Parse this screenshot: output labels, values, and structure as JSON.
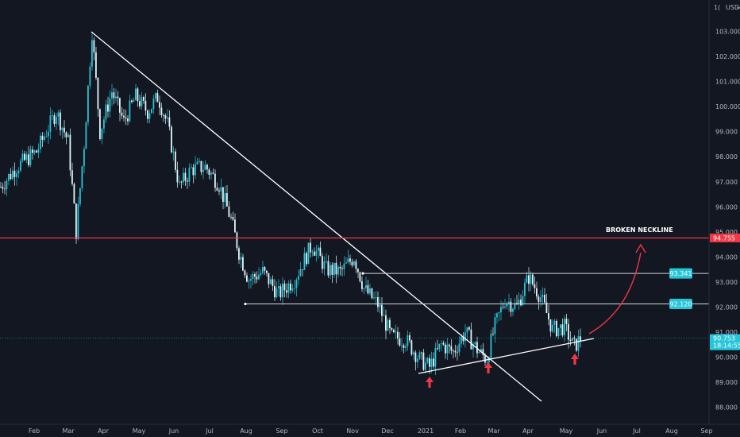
{
  "chart_data": {
    "type": "candlestick",
    "title": "",
    "currency_label": "USD",
    "y_axis_top_label": "1(",
    "ylim": [
      87.6,
      104.1
    ],
    "y_ticks": [
      "88.000",
      "89.000",
      "90.000",
      "91.000",
      "92.000",
      "93.000",
      "94.000",
      "95.000",
      "96.000",
      "97.000",
      "98.000",
      "99.000",
      "100.000",
      "101.000",
      "102.000",
      "103.000"
    ],
    "x_ticks": [
      "Feb",
      "Mar",
      "Apr",
      "May",
      "Jun",
      "Jul",
      "Aug",
      "Sep",
      "Oct",
      "Nov",
      "Dec",
      "2021",
      "Feb",
      "Mar",
      "Apr",
      "May",
      "Jun",
      "Jul",
      "Aug",
      "Sep"
    ],
    "price_path": [
      {
        "t": 0,
        "v": 96.8
      },
      {
        "t": 20,
        "v": 97.6
      },
      {
        "t": 45,
        "v": 98.2
      },
      {
        "t": 70,
        "v": 99.8
      },
      {
        "t": 85,
        "v": 98.6
      },
      {
        "t": 95,
        "v": 95.0
      },
      {
        "t": 105,
        "v": 98.5
      },
      {
        "t": 115,
        "v": 103.0
      },
      {
        "t": 125,
        "v": 99.0
      },
      {
        "t": 140,
        "v": 100.6
      },
      {
        "t": 155,
        "v": 99.4
      },
      {
        "t": 170,
        "v": 100.4
      },
      {
        "t": 185,
        "v": 99.8
      },
      {
        "t": 198,
        "v": 100.4
      },
      {
        "t": 210,
        "v": 99.3
      },
      {
        "t": 225,
        "v": 96.8
      },
      {
        "t": 240,
        "v": 97.5
      },
      {
        "t": 258,
        "v": 97.6
      },
      {
        "t": 275,
        "v": 96.9
      },
      {
        "t": 290,
        "v": 95.5
      },
      {
        "t": 300,
        "v": 94.2
      },
      {
        "t": 312,
        "v": 93.1
      },
      {
        "t": 330,
        "v": 93.4
      },
      {
        "t": 350,
        "v": 92.5
      },
      {
        "t": 370,
        "v": 93.1
      },
      {
        "t": 392,
        "v": 94.5
      },
      {
        "t": 410,
        "v": 93.5
      },
      {
        "t": 428,
        "v": 93.4
      },
      {
        "t": 445,
        "v": 94.0
      },
      {
        "t": 458,
        "v": 92.7
      },
      {
        "t": 475,
        "v": 92.1
      },
      {
        "t": 492,
        "v": 90.8
      },
      {
        "t": 510,
        "v": 90.7
      },
      {
        "t": 528,
        "v": 89.9
      },
      {
        "t": 540,
        "v": 89.6
      },
      {
        "t": 555,
        "v": 90.5
      },
      {
        "t": 570,
        "v": 90.2
      },
      {
        "t": 585,
        "v": 91.0
      },
      {
        "t": 600,
        "v": 90.3
      },
      {
        "t": 612,
        "v": 89.9
      },
      {
        "t": 622,
        "v": 91.2
      },
      {
        "t": 635,
        "v": 92.3
      },
      {
        "t": 650,
        "v": 92.0
      },
      {
        "t": 665,
        "v": 93.2
      },
      {
        "t": 680,
        "v": 92.4
      },
      {
        "t": 695,
        "v": 91.1
      },
      {
        "t": 710,
        "v": 91.2
      },
      {
        "t": 722,
        "v": 90.4
      },
      {
        "t": 730,
        "v": 90.75
      }
    ],
    "price_levels": [
      {
        "value": 94.755,
        "label": "94.755",
        "color": "#f23645"
      },
      {
        "value": 93.341,
        "label": "93.341",
        "color": "#26c6da"
      },
      {
        "value": 92.12,
        "label": "92.120",
        "color": "#26c6da"
      }
    ],
    "current_price": {
      "value": 90.753,
      "label": "90.753",
      "countdown": "18:14:55",
      "color": "#26c6da"
    },
    "annotations": [
      {
        "text": "BROKEN NECKLINE"
      }
    ],
    "colors": {
      "background": "#131722",
      "up": "#26c6da",
      "down": "#e0f7fa",
      "neckline": "#f23645",
      "trendline": "#ffffff",
      "arrow": "#f23645"
    },
    "grid": false
  }
}
